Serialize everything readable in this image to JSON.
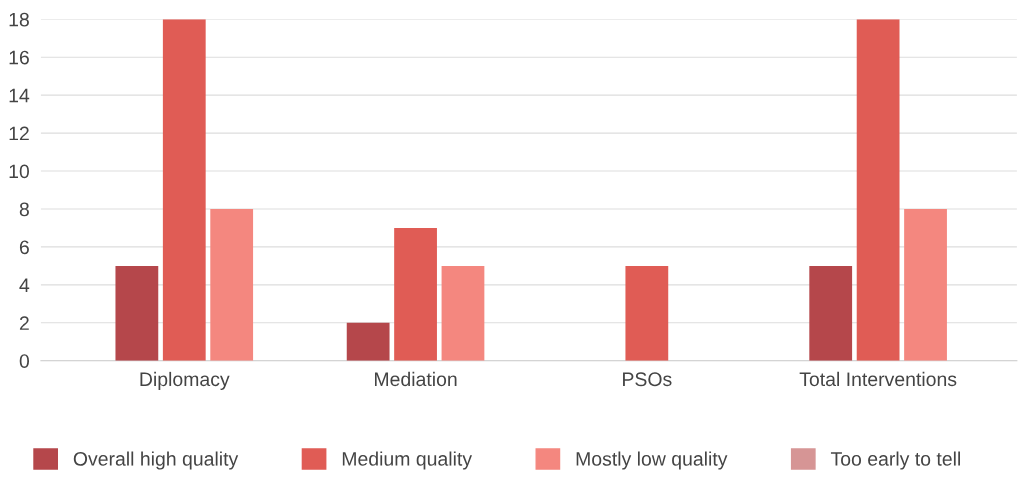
{
  "chart_data": {
    "type": "bar",
    "categories": [
      "Diplomacy",
      "Mediation",
      "PSOs",
      "Total Interventions"
    ],
    "series": [
      {
        "name": "Overall high quality",
        "color": "#b5474b",
        "values": [
          5,
          2,
          null,
          5
        ]
      },
      {
        "name": "Medium quality",
        "color": "#e05c55",
        "values": [
          18,
          7,
          5,
          18
        ]
      },
      {
        "name": "Mostly low quality",
        "color": "#f4877f",
        "values": [
          8,
          5,
          null,
          8
        ]
      },
      {
        "name": "Too early to tell",
        "color": "#d69595",
        "values": [
          null,
          null,
          null,
          null
        ]
      }
    ],
    "ylim": [
      0,
      18
    ],
    "yticks": [
      0,
      2,
      4,
      6,
      8,
      10,
      12,
      14,
      16,
      18
    ],
    "grid": "y",
    "legend": "bottom"
  }
}
